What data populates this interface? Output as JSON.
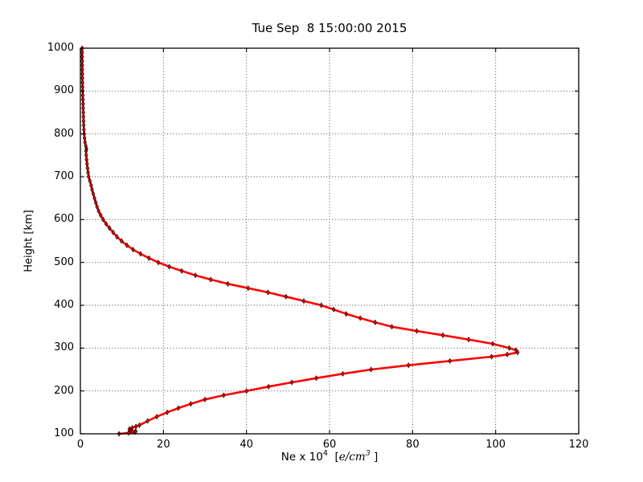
{
  "figure": {
    "background": "#ffffff"
  },
  "chart_data": {
    "type": "line",
    "title": "Tue Sep  8 15:00:00 2015",
    "xlabel": "Ne x 10^4  [e/cm^3 ]",
    "xlabel_parts": {
      "prefix": "Ne x 10",
      "sup": "4",
      "mid": "  [",
      "math": "e/cm",
      "math_sup": "3",
      "suffix": " ]"
    },
    "ylabel": "Height [km]",
    "xlim": [
      0,
      120
    ],
    "ylim": [
      100,
      1000
    ],
    "xticks": [
      0,
      20,
      40,
      60,
      80,
      100,
      120
    ],
    "yticks": [
      100,
      200,
      300,
      400,
      500,
      600,
      700,
      800,
      900,
      1000
    ],
    "grid": {
      "on": true,
      "style": "dotted",
      "color": "#3d3d3d"
    },
    "legend": "none",
    "frame_color": "#000000",
    "series": [
      {
        "name": "electron-density-profile",
        "line_color": "#ff0000",
        "line_width": 2.6,
        "marker": "thin-diamond",
        "marker_fill": "#ff0000",
        "marker_edge": "#140000",
        "points_x_ne_y_heightkm": [
          [
            9.3,
            100
          ],
          [
            11.6,
            102
          ],
          [
            13.2,
            104
          ],
          [
            13.3,
            106
          ],
          [
            12.1,
            108
          ],
          [
            11.8,
            111
          ],
          [
            12.5,
            114
          ],
          [
            13.4,
            117
          ],
          [
            14.2,
            120
          ],
          [
            16.2,
            130
          ],
          [
            18.4,
            140
          ],
          [
            20.9,
            150
          ],
          [
            23.6,
            160
          ],
          [
            26.6,
            170
          ],
          [
            30.0,
            180
          ],
          [
            34.5,
            190
          ],
          [
            40.0,
            200
          ],
          [
            45.3,
            210
          ],
          [
            50.9,
            220
          ],
          [
            56.8,
            230
          ],
          [
            63.2,
            240
          ],
          [
            70.0,
            250
          ],
          [
            79.0,
            260
          ],
          [
            89.0,
            270
          ],
          [
            99.0,
            280
          ],
          [
            102.8,
            285
          ],
          [
            105.3,
            290
          ],
          [
            104.9,
            295
          ],
          [
            103.3,
            300
          ],
          [
            99.3,
            310
          ],
          [
            93.5,
            320
          ],
          [
            87.3,
            330
          ],
          [
            81.0,
            340
          ],
          [
            75.0,
            350
          ],
          [
            71.0,
            360
          ],
          [
            67.4,
            370
          ],
          [
            64.0,
            380
          ],
          [
            61.0,
            390
          ],
          [
            58.0,
            400
          ],
          [
            53.8,
            410
          ],
          [
            49.5,
            420
          ],
          [
            45.2,
            430
          ],
          [
            40.4,
            440
          ],
          [
            35.5,
            450
          ],
          [
            31.4,
            460
          ],
          [
            27.7,
            470
          ],
          [
            24.4,
            480
          ],
          [
            21.4,
            490
          ],
          [
            18.8,
            500
          ],
          [
            16.5,
            510
          ],
          [
            14.5,
            520
          ],
          [
            12.7,
            530
          ],
          [
            11.2,
            540
          ],
          [
            9.9,
            550
          ],
          [
            8.8,
            560
          ],
          [
            7.9,
            570
          ],
          [
            7.0,
            580
          ],
          [
            6.2,
            590
          ],
          [
            5.5,
            600
          ],
          [
            4.9,
            610
          ],
          [
            4.4,
            620
          ],
          [
            4.0,
            630
          ],
          [
            3.7,
            640
          ],
          [
            3.4,
            650
          ],
          [
            3.1,
            660
          ],
          [
            2.8,
            670
          ],
          [
            2.6,
            680
          ],
          [
            2.3,
            690
          ],
          [
            2.0,
            700
          ],
          [
            1.85,
            710
          ],
          [
            1.72,
            720
          ],
          [
            1.6,
            730
          ],
          [
            1.5,
            740
          ],
          [
            1.42,
            750
          ],
          [
            1.38,
            760
          ],
          [
            1.48,
            765
          ],
          [
            1.3,
            772
          ],
          [
            1.12,
            780
          ],
          [
            1.0,
            790
          ],
          [
            0.9,
            800
          ],
          [
            0.85,
            810
          ],
          [
            0.8,
            820
          ],
          [
            0.77,
            830
          ],
          [
            0.74,
            840
          ],
          [
            0.71,
            850
          ],
          [
            0.68,
            860
          ],
          [
            0.65,
            870
          ],
          [
            0.62,
            880
          ],
          [
            0.59,
            890
          ],
          [
            0.56,
            900
          ],
          [
            0.54,
            910
          ],
          [
            0.52,
            920
          ],
          [
            0.5,
            930
          ],
          [
            0.48,
            940
          ],
          [
            0.47,
            950
          ],
          [
            0.46,
            960
          ],
          [
            0.45,
            970
          ],
          [
            0.44,
            980
          ],
          [
            0.43,
            990
          ],
          [
            0.42,
            1000
          ]
        ]
      }
    ]
  }
}
